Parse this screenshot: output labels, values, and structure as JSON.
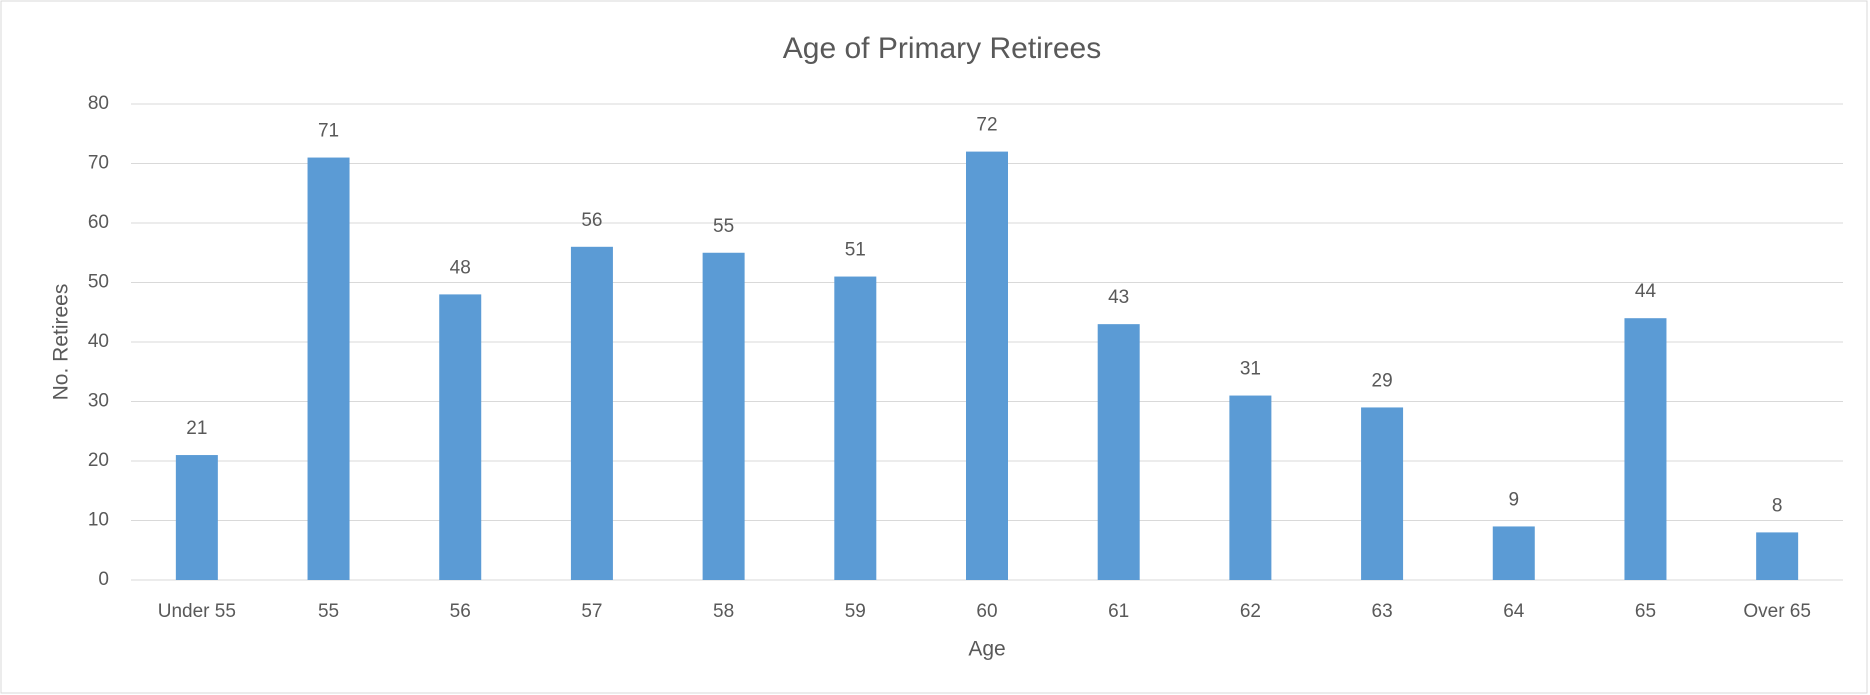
{
  "chart_data": {
    "type": "bar",
    "title": "Age of Primary Retirees",
    "x_label": "Age",
    "y_label": "No. Retirees",
    "categories": [
      "Under 55",
      "55",
      "56",
      "57",
      "58",
      "59",
      "60",
      "61",
      "62",
      "63",
      "64",
      "65",
      "Over 65"
    ],
    "values": [
      21,
      71,
      48,
      56,
      55,
      51,
      72,
      43,
      31,
      29,
      9,
      44,
      8
    ],
    "color": "#5b9bd5",
    "ylim": [
      0,
      80
    ],
    "yticks": [
      0,
      10,
      20,
      30,
      40,
      50,
      60,
      70,
      80
    ],
    "grid": true
  }
}
